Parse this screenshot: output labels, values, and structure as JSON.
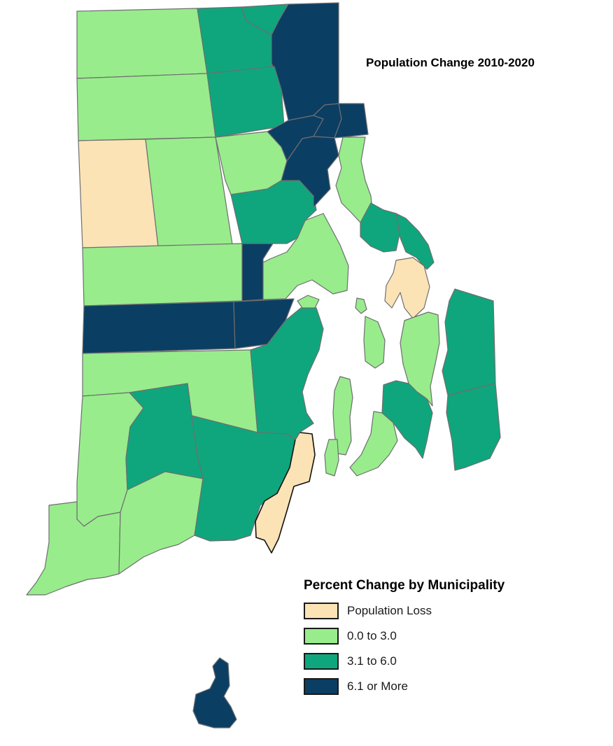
{
  "title": "Population Change 2010-2020",
  "legend": {
    "title": "Percent Change by Municipality",
    "items": [
      {
        "category": "loss",
        "label": "Population Loss",
        "color": "#fbe3b6"
      },
      {
        "category": "low",
        "label": "0.0 to 3.0",
        "color": "#98ec8c"
      },
      {
        "category": "mid",
        "label": "3.1 to 6.0",
        "color": "#0fa67d"
      },
      {
        "category": "high",
        "label": "6.1 or More",
        "color": "#0b3e63"
      }
    ]
  },
  "colors": {
    "border": "#6e6e6e",
    "water": "#ffffff"
  }
}
